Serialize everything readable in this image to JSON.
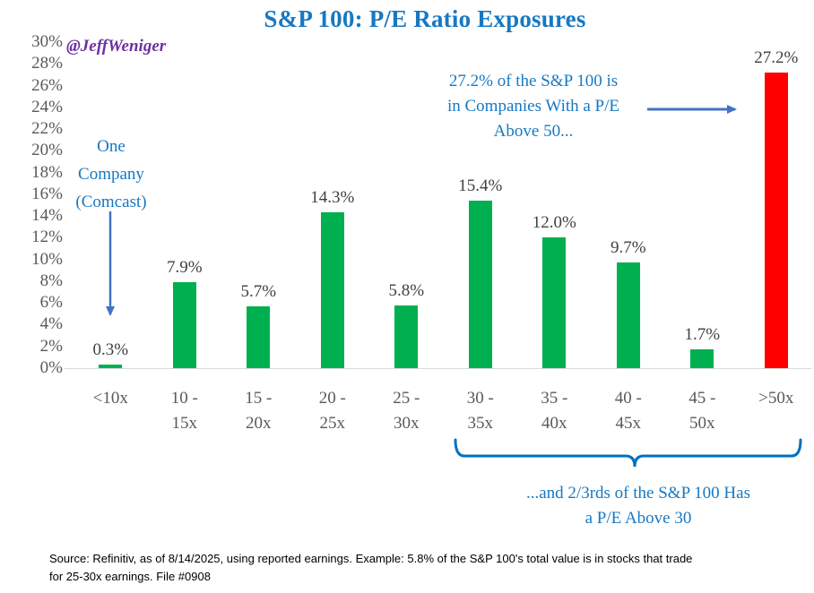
{
  "chart_data": {
    "type": "bar",
    "title": "S&P 100: P/E Ratio Exposures",
    "categories": [
      "<10x",
      "10 - 15x",
      "15 - 20x",
      "20 - 25x",
      "25 - 30x",
      "30 - 35x",
      "35 - 40x",
      "40 - 45x",
      "45 - 50x",
      ">50x"
    ],
    "category_lines": [
      [
        "<10x"
      ],
      [
        "10 -",
        "15x"
      ],
      [
        "15 -",
        "20x"
      ],
      [
        "20 -",
        "25x"
      ],
      [
        "25 -",
        "30x"
      ],
      [
        "30 -",
        "35x"
      ],
      [
        "35 -",
        "40x"
      ],
      [
        "40 -",
        "45x"
      ],
      [
        "45 -",
        "50x"
      ],
      [
        ">50x"
      ]
    ],
    "values": [
      0.3,
      7.9,
      5.7,
      14.3,
      5.8,
      15.4,
      12.0,
      9.7,
      1.7,
      27.2
    ],
    "value_labels": [
      "0.3%",
      "7.9%",
      "5.7%",
      "14.3%",
      "5.8%",
      "15.4%",
      "12.0%",
      "9.7%",
      "1.7%",
      "27.2%"
    ],
    "bar_colors": [
      "#00B050",
      "#00B050",
      "#00B050",
      "#00B050",
      "#00B050",
      "#00B050",
      "#00B050",
      "#00B050",
      "#00B050",
      "#FF0000"
    ],
    "xlabel": "",
    "ylabel": "",
    "ylim": [
      0,
      30
    ],
    "ytick_step": 2,
    "ytick_labels": [
      "30%",
      "28%",
      "26%",
      "24%",
      "22%",
      "20%",
      "18%",
      "16%",
      "14%",
      "12%",
      "10%",
      "8%",
      "6%",
      "4%",
      "2%",
      "0%"
    ],
    "grid": false,
    "legend": "none"
  },
  "annotations": {
    "watermark": "@JeffWeniger",
    "one_company": "One\nCompany\n(Comcast)",
    "above_50": "27.2% of the S&P 100 is\nin Companies With a P/E\nAbove 50...",
    "brace_note": "...and 2/3rds of the S&P 100 Has\na P/E Above 30"
  },
  "source_note": "Source: Refinitiv, as of 8/14/2025, using reported earnings. Example: 5.8% of the S&P 100's total value is in stocks that trade\nfor 25-30x earnings. File #0908",
  "colors": {
    "title_blue": "#1778C2",
    "annotation_blue": "#1778C2",
    "arrow_blue": "#4472C4",
    "brace_blue": "#0070C0",
    "watermark_purple": "#7030A0",
    "bar_green": "#00B050",
    "bar_red": "#FF0000",
    "axis_label_gray": "#595959",
    "data_label_gray": "#404040",
    "axis_line_gray": "#D9D9D9"
  }
}
